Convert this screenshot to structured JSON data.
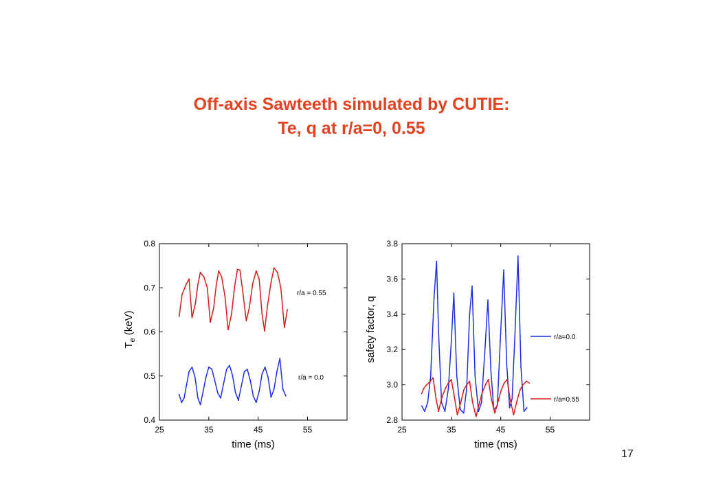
{
  "title_line1": "Off-axis Sawteeth simulated by CUTIE:",
  "title_line2": "Te, q at r/a=0, 0.55",
  "page_number": "17",
  "colors": {
    "title": "#e3411f",
    "red_series": "#d41a1a",
    "blue_series": "#1f2fe0"
  },
  "chart_data": [
    {
      "type": "line",
      "xlabel": "time (ms)",
      "ylabel_main": "T",
      "ylabel_sub": "e",
      "ylabel_unit": "(keV)",
      "xlim": [
        25,
        63
      ],
      "ylim": [
        0.4,
        0.8
      ],
      "x_ticks": [
        25,
        35,
        45,
        55
      ],
      "x_tick_labels": [
        "25",
        "35",
        "45",
        "55"
      ],
      "y_ticks": [
        0.4,
        0.5,
        0.6,
        0.7,
        0.8
      ],
      "y_tick_labels": [
        "0.4",
        "0.5",
        "0.6",
        "0.7",
        "0.8"
      ],
      "legend": "inline labels at right",
      "series": [
        {
          "name": "r/a = 0.55",
          "color": "#d41a1a",
          "x": [
            29.0,
            29.6,
            30.3,
            31.0,
            31.6,
            32.3,
            32.8,
            33.3,
            34.0,
            34.7,
            35.3,
            36.0,
            36.5,
            37.0,
            37.6,
            38.3,
            38.9,
            39.6,
            40.2,
            40.8,
            41.3,
            41.9,
            42.6,
            43.2,
            43.9,
            44.6,
            45.2,
            45.8,
            46.3,
            46.9,
            47.6,
            48.2,
            48.9,
            49.6,
            50.3,
            50.9
          ],
          "y": [
            0.635,
            0.685,
            0.705,
            0.72,
            0.632,
            0.665,
            0.708,
            0.735,
            0.725,
            0.7,
            0.622,
            0.655,
            0.705,
            0.738,
            0.725,
            0.68,
            0.605,
            0.64,
            0.7,
            0.742,
            0.74,
            0.69,
            0.625,
            0.655,
            0.71,
            0.738,
            0.72,
            0.64,
            0.602,
            0.66,
            0.712,
            0.745,
            0.735,
            0.7,
            0.61,
            0.65
          ]
        },
        {
          "name": "r/a = 0.0",
          "color": "#1f2fe0",
          "x": [
            29.0,
            29.5,
            30.0,
            30.5,
            31.0,
            31.6,
            32.2,
            32.8,
            33.3,
            33.8,
            34.4,
            35.0,
            35.6,
            36.2,
            36.8,
            37.4,
            38.0,
            38.6,
            39.2,
            39.8,
            40.4,
            41.0,
            41.6,
            42.2,
            42.8,
            43.4,
            44.0,
            44.6,
            45.2,
            45.8,
            46.4,
            47.0,
            47.6,
            48.2,
            48.8,
            49.4,
            50.0,
            50.6
          ],
          "y": [
            0.458,
            0.44,
            0.45,
            0.48,
            0.51,
            0.52,
            0.498,
            0.45,
            0.435,
            0.462,
            0.496,
            0.52,
            0.516,
            0.49,
            0.462,
            0.45,
            0.483,
            0.515,
            0.524,
            0.502,
            0.463,
            0.445,
            0.478,
            0.51,
            0.515,
            0.49,
            0.455,
            0.44,
            0.465,
            0.505,
            0.52,
            0.497,
            0.452,
            0.47,
            0.51,
            0.54,
            0.47,
            0.455
          ]
        }
      ]
    },
    {
      "type": "line",
      "xlabel": "time (ms)",
      "ylabel": "safety factor, q",
      "xlim": [
        25,
        63
      ],
      "ylim": [
        2.8,
        3.8
      ],
      "x_ticks": [
        25,
        35,
        45,
        55
      ],
      "x_tick_labels": [
        "25",
        "35",
        "45",
        "55"
      ],
      "y_ticks": [
        2.8,
        3.0,
        3.2,
        3.4,
        3.6,
        3.8
      ],
      "y_tick_labels": [
        "2.8",
        "3.0",
        "3.2",
        "3.4",
        "3.6",
        "3.8"
      ],
      "legend": "right",
      "series": [
        {
          "name": "r/a=0.0",
          "color": "#1f2fe0",
          "x": [
            29.0,
            29.6,
            30.2,
            30.8,
            31.5,
            32.0,
            32.4,
            33.0,
            33.7,
            34.4,
            35.0,
            35.5,
            36.1,
            36.8,
            37.5,
            38.1,
            38.7,
            39.2,
            39.8,
            40.5,
            41.1,
            41.8,
            42.4,
            43.0,
            43.6,
            44.3,
            44.9,
            45.6,
            46.2,
            46.8,
            47.3,
            47.9,
            48.5,
            49.1,
            49.7,
            50.3
          ],
          "y": [
            2.88,
            2.85,
            2.9,
            3.05,
            3.5,
            3.7,
            3.3,
            2.9,
            2.85,
            2.98,
            3.25,
            3.52,
            3.05,
            2.86,
            2.84,
            2.98,
            3.4,
            3.56,
            3.05,
            2.85,
            2.9,
            3.2,
            3.48,
            3.08,
            2.86,
            2.88,
            3.25,
            3.65,
            3.12,
            2.87,
            2.92,
            3.3,
            3.73,
            3.1,
            2.85,
            2.87
          ]
        },
        {
          "name": "r/a=0.55",
          "color": "#d41a1a",
          "x": [
            29.0,
            29.4,
            30.0,
            30.7,
            31.3,
            31.9,
            32.4,
            33.1,
            33.8,
            34.4,
            35.0,
            35.5,
            36.2,
            36.9,
            37.5,
            38.1,
            38.7,
            39.3,
            40.0,
            40.7,
            41.3,
            41.9,
            42.5,
            43.1,
            43.8,
            44.5,
            45.1,
            45.7,
            46.3,
            46.9,
            47.6,
            48.3,
            48.9,
            49.5,
            50.2,
            50.8
          ],
          "y": [
            2.95,
            2.98,
            3.0,
            3.02,
            3.04,
            2.92,
            2.85,
            2.93,
            2.98,
            3.01,
            3.03,
            2.95,
            2.83,
            2.9,
            2.97,
            3.0,
            3.02,
            2.9,
            2.82,
            2.9,
            2.96,
            3.0,
            3.03,
            2.92,
            2.84,
            2.91,
            2.97,
            3.01,
            3.03,
            2.92,
            2.83,
            2.91,
            2.97,
            3.0,
            3.02,
            3.01
          ]
        }
      ]
    }
  ]
}
